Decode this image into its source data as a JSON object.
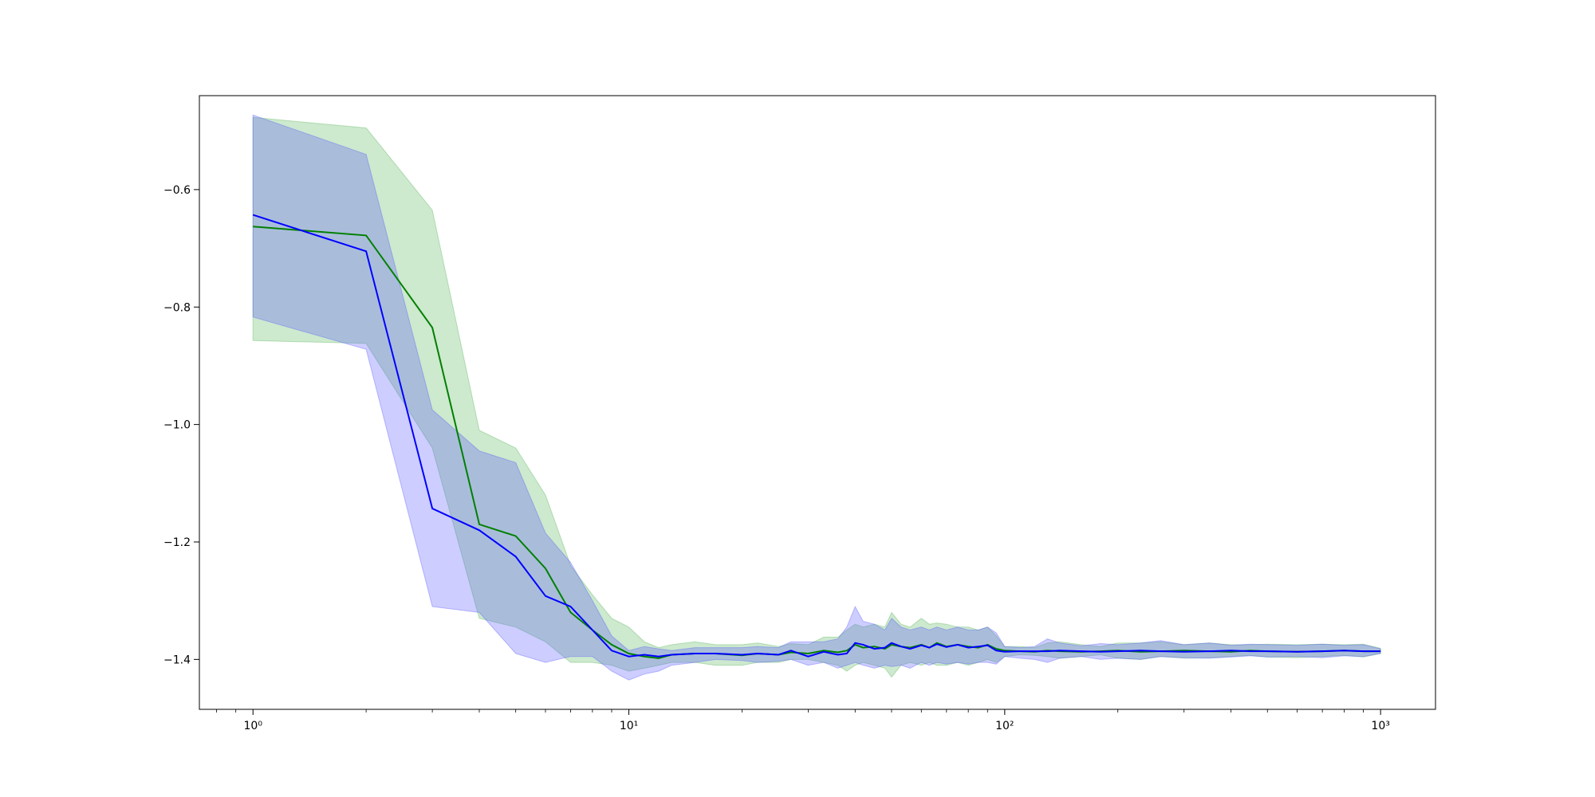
{
  "chart_data": {
    "type": "line",
    "title": "",
    "xlabel": "",
    "ylabel": "",
    "xscale": "log",
    "xlim": [
      0.72,
      1400
    ],
    "ylim": [
      -1.485,
      -0.44
    ],
    "grid": false,
    "x_ticks": [
      {
        "value": 1,
        "label": "10⁰"
      },
      {
        "value": 10,
        "label": "10¹"
      },
      {
        "value": 100,
        "label": "10²"
      },
      {
        "value": 1000,
        "label": "10³"
      }
    ],
    "y_ticks": [
      {
        "value": -0.6,
        "label": "−0.6"
      },
      {
        "value": -0.8,
        "label": "−0.8"
      },
      {
        "value": -1.0,
        "label": "−1.0"
      },
      {
        "value": -1.2,
        "label": "−1.2"
      },
      {
        "value": -1.4,
        "label": "−1.4"
      }
    ],
    "series": [
      {
        "color": "#008000",
        "band_color": "#4caf50",
        "x": [
          1,
          2,
          3,
          4,
          5,
          6,
          7,
          8,
          9,
          10,
          11,
          12,
          13,
          15,
          17,
          20,
          22,
          25,
          27,
          30,
          33,
          36,
          38,
          40,
          42,
          45,
          48,
          50,
          53,
          56,
          60,
          63,
          66,
          70,
          75,
          80,
          85,
          90,
          95,
          100,
          110,
          120,
          130,
          140,
          160,
          180,
          200,
          230,
          260,
          300,
          350,
          400,
          450,
          500,
          600,
          700,
          800,
          900,
          1000
        ],
        "values": [
          -0.663,
          -0.678,
          -0.835,
          -1.17,
          -1.19,
          -1.245,
          -1.32,
          -1.35,
          -1.375,
          -1.39,
          -1.395,
          -1.398,
          -1.392,
          -1.39,
          -1.39,
          -1.393,
          -1.39,
          -1.392,
          -1.388,
          -1.39,
          -1.385,
          -1.388,
          -1.385,
          -1.375,
          -1.38,
          -1.378,
          -1.382,
          -1.375,
          -1.378,
          -1.38,
          -1.375,
          -1.38,
          -1.372,
          -1.378,
          -1.375,
          -1.378,
          -1.38,
          -1.375,
          -1.382,
          -1.385,
          -1.386,
          -1.387,
          -1.385,
          -1.386,
          -1.387,
          -1.386,
          -1.385,
          -1.387,
          -1.386,
          -1.385,
          -1.386,
          -1.387,
          -1.385,
          -1.386,
          -1.387,
          -1.386,
          -1.385,
          -1.386,
          -1.386
        ],
        "lower": [
          -0.857,
          -0.862,
          -1.04,
          -1.33,
          -1.345,
          -1.37,
          -1.405,
          -1.405,
          -1.41,
          -1.42,
          -1.415,
          -1.41,
          -1.405,
          -1.405,
          -1.41,
          -1.41,
          -1.405,
          -1.405,
          -1.4,
          -1.4,
          -1.405,
          -1.41,
          -1.42,
          -1.41,
          -1.405,
          -1.41,
          -1.415,
          -1.43,
          -1.41,
          -1.405,
          -1.41,
          -1.405,
          -1.41,
          -1.41,
          -1.405,
          -1.41,
          -1.405,
          -1.4,
          -1.405,
          -1.395,
          -1.392,
          -1.393,
          -1.395,
          -1.398,
          -1.395,
          -1.392,
          -1.398,
          -1.4,
          -1.395,
          -1.398,
          -1.397,
          -1.395,
          -1.393,
          -1.396,
          -1.397,
          -1.395,
          -1.393,
          -1.396,
          -1.39
        ],
        "upper": [
          -0.477,
          -0.495,
          -0.635,
          -1.01,
          -1.04,
          -1.12,
          -1.24,
          -1.29,
          -1.33,
          -1.345,
          -1.37,
          -1.38,
          -1.375,
          -1.37,
          -1.375,
          -1.375,
          -1.372,
          -1.378,
          -1.373,
          -1.375,
          -1.362,
          -1.362,
          -1.35,
          -1.34,
          -1.345,
          -1.34,
          -1.345,
          -1.32,
          -1.34,
          -1.345,
          -1.33,
          -1.34,
          -1.338,
          -1.34,
          -1.345,
          -1.345,
          -1.35,
          -1.345,
          -1.36,
          -1.378,
          -1.378,
          -1.38,
          -1.372,
          -1.37,
          -1.375,
          -1.378,
          -1.372,
          -1.372,
          -1.37,
          -1.375,
          -1.372,
          -1.375,
          -1.375,
          -1.374,
          -1.375,
          -1.374,
          -1.375,
          -1.374,
          -1.381
        ]
      },
      {
        "color": "#0000ff",
        "band_color": "#4d4dff",
        "x": [
          1,
          2,
          3,
          4,
          5,
          6,
          7,
          8,
          9,
          10,
          11,
          12,
          13,
          15,
          17,
          20,
          22,
          25,
          27,
          30,
          33,
          36,
          38,
          40,
          42,
          45,
          48,
          50,
          53,
          56,
          60,
          63,
          66,
          70,
          75,
          80,
          85,
          90,
          95,
          100,
          110,
          120,
          130,
          140,
          160,
          180,
          200,
          230,
          260,
          300,
          350,
          400,
          450,
          500,
          600,
          700,
          800,
          900,
          1000
        ],
        "values": [
          -0.643,
          -0.705,
          -1.143,
          -1.18,
          -1.225,
          -1.292,
          -1.31,
          -1.35,
          -1.385,
          -1.395,
          -1.392,
          -1.395,
          -1.392,
          -1.39,
          -1.39,
          -1.392,
          -1.39,
          -1.392,
          -1.385,
          -1.395,
          -1.387,
          -1.392,
          -1.39,
          -1.372,
          -1.375,
          -1.382,
          -1.38,
          -1.372,
          -1.378,
          -1.382,
          -1.376,
          -1.38,
          -1.374,
          -1.379,
          -1.375,
          -1.38,
          -1.378,
          -1.376,
          -1.385,
          -1.387,
          -1.386,
          -1.386,
          -1.386,
          -1.385,
          -1.386,
          -1.387,
          -1.386,
          -1.385,
          -1.386,
          -1.387,
          -1.386,
          -1.385,
          -1.386,
          -1.386,
          -1.387,
          -1.386,
          -1.385,
          -1.386,
          -1.386
        ],
        "lower": [
          -0.817,
          -0.872,
          -1.31,
          -1.32,
          -1.39,
          -1.405,
          -1.395,
          -1.395,
          -1.42,
          -1.435,
          -1.425,
          -1.42,
          -1.41,
          -1.405,
          -1.4,
          -1.402,
          -1.405,
          -1.403,
          -1.4,
          -1.41,
          -1.405,
          -1.415,
          -1.41,
          -1.405,
          -1.41,
          -1.415,
          -1.41,
          -1.412,
          -1.41,
          -1.415,
          -1.405,
          -1.41,
          -1.405,
          -1.408,
          -1.405,
          -1.408,
          -1.405,
          -1.405,
          -1.408,
          -1.395,
          -1.398,
          -1.4,
          -1.405,
          -1.398,
          -1.395,
          -1.4,
          -1.398,
          -1.4,
          -1.395,
          -1.397,
          -1.398,
          -1.396,
          -1.394,
          -1.396,
          -1.395,
          -1.397,
          -1.394,
          -1.395,
          -1.39
        ],
        "upper": [
          -0.473,
          -0.54,
          -0.975,
          -1.045,
          -1.065,
          -1.185,
          -1.235,
          -1.3,
          -1.36,
          -1.385,
          -1.378,
          -1.382,
          -1.385,
          -1.38,
          -1.38,
          -1.38,
          -1.378,
          -1.38,
          -1.37,
          -1.37,
          -1.37,
          -1.365,
          -1.345,
          -1.31,
          -1.335,
          -1.34,
          -1.35,
          -1.33,
          -1.345,
          -1.35,
          -1.345,
          -1.35,
          -1.345,
          -1.35,
          -1.345,
          -1.35,
          -1.35,
          -1.345,
          -1.355,
          -1.378,
          -1.38,
          -1.378,
          -1.365,
          -1.372,
          -1.377,
          -1.373,
          -1.375,
          -1.372,
          -1.368,
          -1.375,
          -1.372,
          -1.376,
          -1.374,
          -1.375,
          -1.376,
          -1.374,
          -1.376,
          -1.375,
          -1.382
        ]
      }
    ]
  }
}
